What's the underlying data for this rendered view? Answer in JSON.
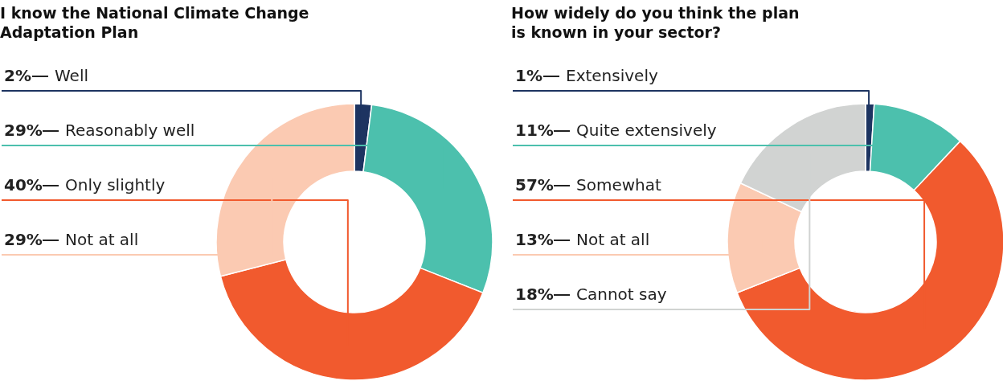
{
  "chart_data": [
    {
      "type": "donut",
      "title": "I know the National Climate Change Adaptation Plan",
      "categories": [
        "Well",
        "Reasonably well",
        "Only slightly",
        "Not at all"
      ],
      "values": [
        2,
        29,
        40,
        29
      ],
      "value_labels": [
        "2%",
        "29%",
        "40%",
        "29%"
      ],
      "colors": [
        "#1d3461",
        "#4cc0ad",
        "#f15a2e",
        "#fbcab2"
      ]
    },
    {
      "type": "donut",
      "title": "How widely do you think the plan is known in your sector?",
      "categories": [
        "Extensively",
        "Quite extensively",
        "Somewhat",
        "Not at all",
        "Cannot say"
      ],
      "values": [
        1,
        11,
        57,
        13,
        18
      ],
      "value_labels": [
        "1%",
        "11%",
        "57%",
        "13%",
        "18%"
      ],
      "colors": [
        "#1d3461",
        "#4cc0ad",
        "#f15a2e",
        "#fbcab2",
        "#d1d3d2"
      ]
    }
  ]
}
